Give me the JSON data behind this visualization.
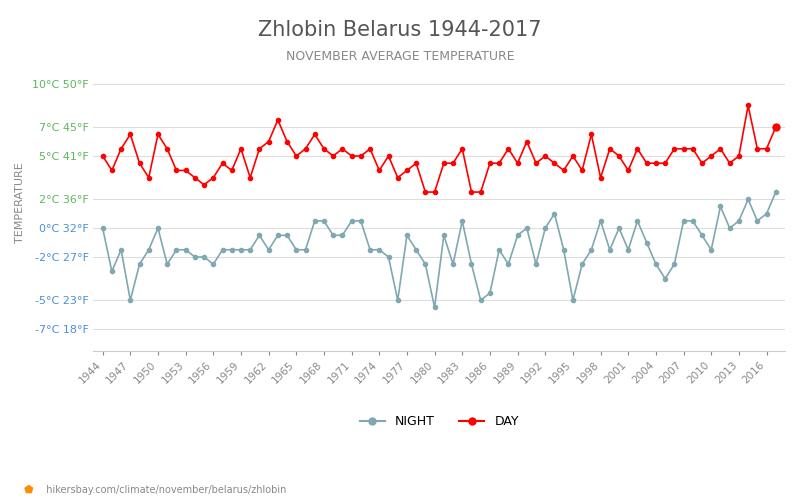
{
  "title": "Zhlobin Belarus 1944-2017",
  "subtitle": "NOVEMBER AVERAGE TEMPERATURE",
  "ylabel": "TEMPERATURE",
  "footer": "hikersbay.com/climate/november/belarus/zhlobin",
  "years": [
    1944,
    1945,
    1946,
    1947,
    1948,
    1949,
    1950,
    1951,
    1952,
    1953,
    1954,
    1955,
    1956,
    1957,
    1958,
    1959,
    1960,
    1961,
    1962,
    1963,
    1964,
    1965,
    1966,
    1967,
    1968,
    1969,
    1970,
    1971,
    1972,
    1973,
    1974,
    1975,
    1976,
    1977,
    1978,
    1979,
    1980,
    1981,
    1982,
    1983,
    1984,
    1985,
    1986,
    1987,
    1988,
    1989,
    1990,
    1991,
    1992,
    1993,
    1994,
    1995,
    1996,
    1997,
    1998,
    1999,
    2000,
    2001,
    2002,
    2003,
    2004,
    2005,
    2006,
    2007,
    2008,
    2009,
    2010,
    2011,
    2012,
    2013,
    2014,
    2015,
    2016,
    2017
  ],
  "day_temps": [
    5.0,
    4.0,
    5.5,
    6.5,
    4.5,
    3.5,
    6.5,
    5.5,
    4.0,
    4.0,
    3.5,
    3.0,
    3.5,
    4.5,
    4.0,
    5.5,
    3.5,
    5.5,
    6.0,
    7.5,
    6.0,
    5.0,
    5.5,
    6.5,
    5.5,
    5.0,
    5.5,
    5.0,
    5.0,
    5.5,
    4.0,
    5.0,
    3.5,
    4.0,
    4.5,
    2.5,
    2.5,
    4.5,
    4.5,
    5.5,
    2.5,
    2.5,
    4.5,
    4.5,
    5.5,
    4.5,
    6.0,
    4.5,
    5.0,
    4.5,
    4.0,
    5.0,
    4.0,
    6.5,
    3.5,
    5.5,
    5.0,
    4.0,
    5.5,
    4.5,
    4.5,
    4.5,
    5.5,
    5.5,
    5.5,
    4.5,
    5.0,
    5.5,
    4.5,
    5.0,
    8.5,
    5.5,
    5.5,
    7.0
  ],
  "night_temps": [
    0.0,
    -3.0,
    -1.5,
    -5.0,
    -2.5,
    -1.5,
    0.0,
    -2.5,
    -1.5,
    -1.5,
    -2.0,
    -2.0,
    -2.5,
    -1.5,
    -1.5,
    -1.5,
    -1.5,
    -0.5,
    -1.5,
    -0.5,
    -0.5,
    -1.5,
    -1.5,
    0.5,
    0.5,
    -0.5,
    -0.5,
    0.5,
    0.5,
    -1.5,
    -1.5,
    -2.0,
    -5.0,
    -0.5,
    -1.5,
    -2.5,
    -5.5,
    -0.5,
    -2.5,
    0.5,
    -2.5,
    -5.0,
    -4.5,
    -1.5,
    -2.5,
    -0.5,
    0.0,
    -2.5,
    0.0,
    1.0,
    -1.5,
    -5.0,
    -2.5,
    -1.5,
    0.5,
    -1.5,
    0.0,
    -1.5,
    0.5,
    -1.0,
    -2.5,
    -3.5,
    -2.5,
    0.5,
    0.5,
    -0.5,
    -1.5,
    1.5,
    0.0,
    0.5,
    2.0,
    0.5,
    1.0,
    2.5
  ],
  "yticks_c": [
    -7,
    -5,
    -2,
    0,
    2,
    5,
    7,
    10
  ],
  "yticks_f": [
    18,
    23,
    27,
    32,
    36,
    41,
    45,
    50
  ],
  "ylim": [
    -8.5,
    12.0
  ],
  "day_color": "#ff0000",
  "night_color": "#7fa8b0",
  "title_color": "#555555",
  "subtitle_color": "#888888",
  "label_color_green": "#5cb85c",
  "label_color_blue": "#4a90d9",
  "background_color": "#ffffff",
  "grid_color": "#dddddd"
}
